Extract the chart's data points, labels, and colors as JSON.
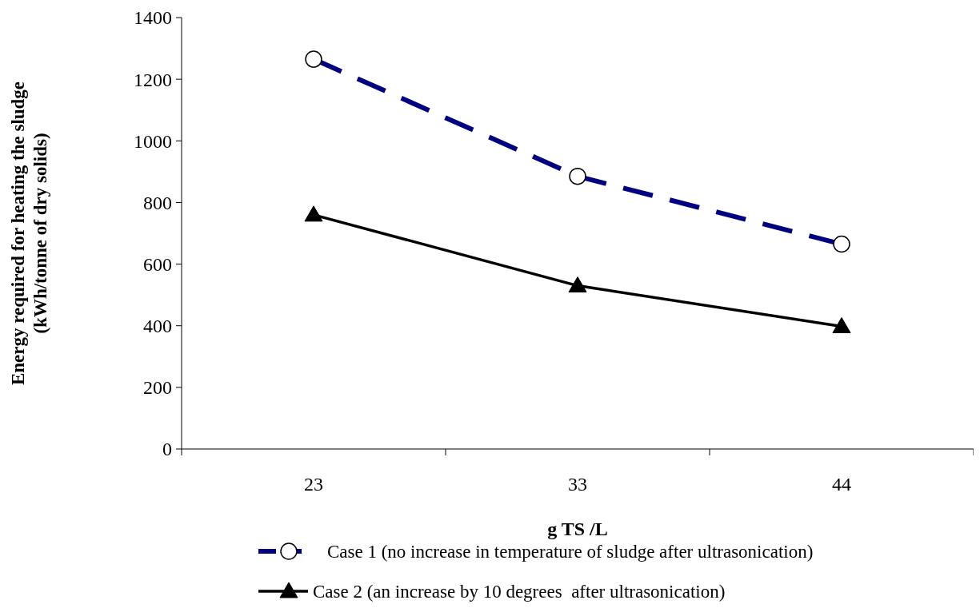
{
  "chart_data": {
    "type": "line",
    "xlabel": "g TS /L",
    "ylabel": "Energy required for heating the sludge\n(kWh/tonne of dry solids)",
    "categories": [
      "23",
      "33",
      "44"
    ],
    "series": [
      {
        "name": "Case 1 (no increase in temperature of sludge after ultrasonication)",
        "color": "#000080",
        "values": [
          1265,
          885,
          665
        ],
        "marker": "circle",
        "line_style": "dashed"
      },
      {
        "name": "Case 2 (an increase by 10 degrees  after ultrasonication)",
        "color": "#000000",
        "values": [
          760,
          530,
          398
        ],
        "marker": "triangle",
        "line_style": "solid"
      }
    ],
    "ylim": [
      0,
      1400
    ],
    "yticks": [
      0,
      200,
      400,
      600,
      800,
      1000,
      1200,
      1400
    ],
    "grid": false,
    "legend": "bottom"
  }
}
